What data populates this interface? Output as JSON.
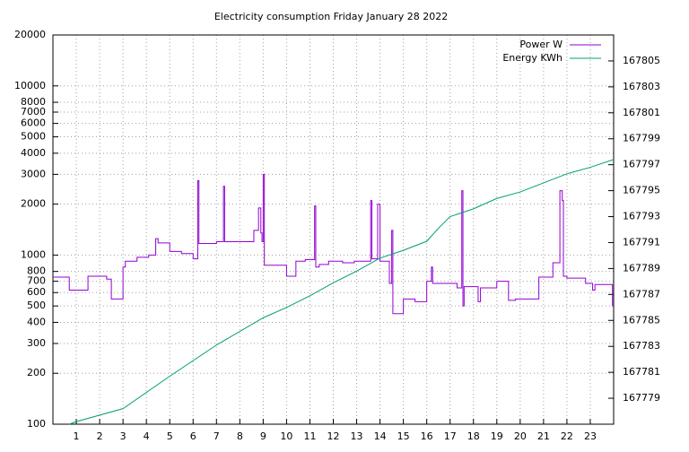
{
  "chart_data": {
    "type": "line",
    "title": "Electricity consumption Friday January 28 2022",
    "xlim": [
      0,
      24
    ],
    "xticks": [
      1,
      2,
      3,
      4,
      5,
      6,
      7,
      8,
      9,
      10,
      11,
      12,
      13,
      14,
      15,
      16,
      17,
      18,
      19,
      20,
      21,
      22,
      23
    ],
    "ylim": [
      100,
      20000
    ],
    "ylog": true,
    "yticks": [
      100,
      200,
      300,
      400,
      500,
      600,
      700,
      800,
      1000,
      2000,
      3000,
      4000,
      5000,
      6000,
      7000,
      8000,
      10000,
      20000
    ],
    "y2lim": [
      167777,
      167807
    ],
    "y2ticks": [
      167779,
      167781,
      167783,
      167785,
      167787,
      167789,
      167791,
      167793,
      167795,
      167797,
      167799,
      167801,
      167803,
      167805
    ],
    "grid": true,
    "legend": "top-right",
    "series": [
      {
        "name": "Power W",
        "color": "#9400d3",
        "style": "steps",
        "x": [
          0,
          0.7,
          1.5,
          2.3,
          2.5,
          3.0,
          3.1,
          3.6,
          4.1,
          4.4,
          4.5,
          5.0,
          5.5,
          6.0,
          6.2,
          6.25,
          7.0,
          7.3,
          7.35,
          8.6,
          8.8,
          8.9,
          8.95,
          9.0,
          9.05,
          10.0,
          10.4,
          10.8,
          11.2,
          11.25,
          11.4,
          11.8,
          12.4,
          12.9,
          13.6,
          13.65,
          13.9,
          14.0,
          14.4,
          14.5,
          14.55,
          15.0,
          15.5,
          16.0,
          16.2,
          16.25,
          17.3,
          17.5,
          17.55,
          17.6,
          18.2,
          18.3,
          19.0,
          19.5,
          19.8,
          20.8,
          21.4,
          21.7,
          21.8,
          21.85,
          22.0,
          22.8,
          23.1,
          23.2,
          23.95
        ],
        "values": [
          740,
          620,
          750,
          720,
          550,
          850,
          920,
          970,
          1000,
          1250,
          1180,
          1050,
          1020,
          950,
          2750,
          1170,
          1200,
          2550,
          1200,
          1400,
          1900,
          1350,
          1200,
          3000,
          870,
          750,
          920,
          940,
          1950,
          850,
          880,
          920,
          900,
          920,
          2100,
          950,
          2000,
          920,
          680,
          1400,
          450,
          550,
          530,
          700,
          850,
          680,
          640,
          2400,
          500,
          650,
          530,
          640,
          700,
          540,
          550,
          740,
          900,
          2400,
          2100,
          750,
          730,
          680,
          620,
          670,
          500
        ]
      },
      {
        "name": "Energy KWh",
        "color": "#009e73",
        "axis": "y2",
        "x": [
          0.7,
          1,
          3,
          5,
          7,
          9,
          10,
          11,
          12,
          13,
          14,
          15,
          16,
          16.5,
          17,
          18,
          19,
          20,
          21,
          22,
          23,
          24
        ],
        "values": [
          167777,
          167777.2,
          167778.2,
          167780.7,
          167783.1,
          167785.2,
          167786,
          167786.9,
          167787.9,
          167788.8,
          167789.8,
          167790.4,
          167791.1,
          167792.1,
          167793,
          167793.6,
          167794.4,
          167794.9,
          167795.6,
          167796.3,
          167796.8,
          167797.4
        ]
      }
    ]
  }
}
